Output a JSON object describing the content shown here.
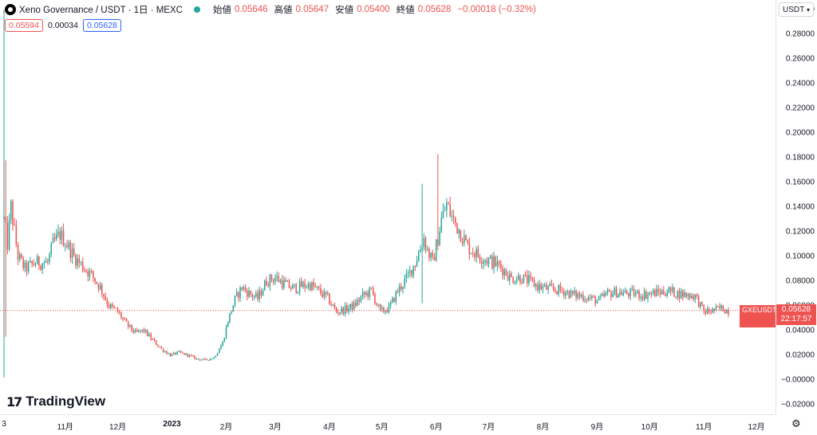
{
  "header": {
    "title": "Xeno Governance / USDT · 1日 · MEXC",
    "ohlc": [
      {
        "label": "始値",
        "value": "0.05646"
      },
      {
        "label": "高値",
        "value": "0.05647"
      },
      {
        "label": "安値",
        "value": "0.05400"
      },
      {
        "label": "終値",
        "value": "0.05628"
      }
    ],
    "change": "−0.00018 (−0.32%)",
    "status_color": "#26a69a"
  },
  "quote": {
    "sell": "0.05594",
    "spread": "0.00034",
    "buy": "0.05628"
  },
  "currency_selector": {
    "value": "USDT"
  },
  "current_price": {
    "symbol": "GXEUSDT",
    "price": "0.05628",
    "countdown": "22:17:57",
    "color": "#ef5350"
  },
  "branding": {
    "logo_text": "TradingView"
  },
  "icons": {
    "settings": "gear-icon",
    "logo": "tradingview-logo-icon",
    "symbol": "symbol-logo-icon"
  },
  "colors": {
    "up": "#26a69a",
    "down": "#ef5350"
  },
  "chart_data": {
    "type": "candlestick",
    "y_ticks": [
      "0.30000",
      "0.28000",
      "0.26000",
      "0.24000",
      "0.22000",
      "0.20000",
      "0.18000",
      "0.16000",
      "0.14000",
      "0.12000",
      "0.10000",
      "0.08000",
      "0.06000",
      "0.04000",
      "0.02000",
      "−0.00000",
      "−0.02000"
    ],
    "ylim": [
      -0.028,
      0.308
    ],
    "x_ticks": [
      "3",
      "11月",
      "12月",
      "2023",
      "2月",
      "3月",
      "4月",
      "5月",
      "6月",
      "7月",
      "8月",
      "9月",
      "10月",
      "11月",
      "12月"
    ],
    "x_tick_days": [
      0,
      35,
      65,
      96,
      127,
      155,
      186,
      216,
      247,
      277,
      308,
      339,
      369,
      400,
      430
    ],
    "close_series": [
      [
        0,
        0.13
      ],
      [
        2,
        0.11
      ],
      [
        4,
        0.14
      ],
      [
        6,
        0.12
      ],
      [
        8,
        0.1
      ],
      [
        12,
        0.09
      ],
      [
        18,
        0.095
      ],
      [
        25,
        0.095
      ],
      [
        28,
        0.11
      ],
      [
        32,
        0.118
      ],
      [
        36,
        0.11
      ],
      [
        40,
        0.1
      ],
      [
        45,
        0.092
      ],
      [
        50,
        0.085
      ],
      [
        55,
        0.075
      ],
      [
        60,
        0.06
      ],
      [
        65,
        0.055
      ],
      [
        70,
        0.045
      ],
      [
        75,
        0.038
      ],
      [
        80,
        0.04
      ],
      [
        85,
        0.032
      ],
      [
        90,
        0.025
      ],
      [
        95,
        0.02
      ],
      [
        100,
        0.022
      ],
      [
        105,
        0.02
      ],
      [
        110,
        0.017
      ],
      [
        115,
        0.016
      ],
      [
        120,
        0.018
      ],
      [
        125,
        0.03
      ],
      [
        128,
        0.048
      ],
      [
        132,
        0.065
      ],
      [
        136,
        0.075
      ],
      [
        140,
        0.07
      ],
      [
        145,
        0.066
      ],
      [
        150,
        0.08
      ],
      [
        155,
        0.083
      ],
      [
        160,
        0.078
      ],
      [
        165,
        0.074
      ],
      [
        170,
        0.076
      ],
      [
        175,
        0.077
      ],
      [
        180,
        0.072
      ],
      [
        185,
        0.066
      ],
      [
        190,
        0.055
      ],
      [
        195,
        0.057
      ],
      [
        200,
        0.06
      ],
      [
        205,
        0.068
      ],
      [
        210,
        0.072
      ],
      [
        215,
        0.055
      ],
      [
        220,
        0.058
      ],
      [
        225,
        0.072
      ],
      [
        230,
        0.082
      ],
      [
        235,
        0.095
      ],
      [
        240,
        0.115
      ],
      [
        242,
        0.105
      ],
      [
        245,
        0.095
      ],
      [
        248,
        0.115
      ],
      [
        250,
        0.13
      ],
      [
        253,
        0.142
      ],
      [
        256,
        0.132
      ],
      [
        260,
        0.122
      ],
      [
        265,
        0.108
      ],
      [
        270,
        0.102
      ],
      [
        275,
        0.098
      ],
      [
        280,
        0.095
      ],
      [
        285,
        0.09
      ],
      [
        290,
        0.082
      ],
      [
        295,
        0.083
      ],
      [
        300,
        0.08
      ],
      [
        305,
        0.076
      ],
      [
        310,
        0.074
      ],
      [
        315,
        0.073
      ],
      [
        320,
        0.072
      ],
      [
        325,
        0.069
      ],
      [
        330,
        0.068
      ],
      [
        335,
        0.066
      ],
      [
        340,
        0.064
      ],
      [
        345,
        0.07
      ],
      [
        350,
        0.071
      ],
      [
        355,
        0.07
      ],
      [
        360,
        0.07
      ],
      [
        365,
        0.069
      ],
      [
        370,
        0.07
      ],
      [
        375,
        0.071
      ],
      [
        380,
        0.072
      ],
      [
        385,
        0.07
      ],
      [
        390,
        0.069
      ],
      [
        395,
        0.068
      ],
      [
        400,
        0.055
      ],
      [
        405,
        0.056
      ],
      [
        410,
        0.058
      ],
      [
        414,
        0.056
      ]
    ],
    "spikes": [
      {
        "day": 0,
        "high": 0.3,
        "low": 0.002
      },
      {
        "day": 1,
        "high": 0.178,
        "low": 0.035
      },
      {
        "day": 239,
        "high": 0.159,
        "low": 0.062
      },
      {
        "day": 248,
        "high": 0.183,
        "low": 0.105
      }
    ],
    "current_price_line": 0.05628
  }
}
